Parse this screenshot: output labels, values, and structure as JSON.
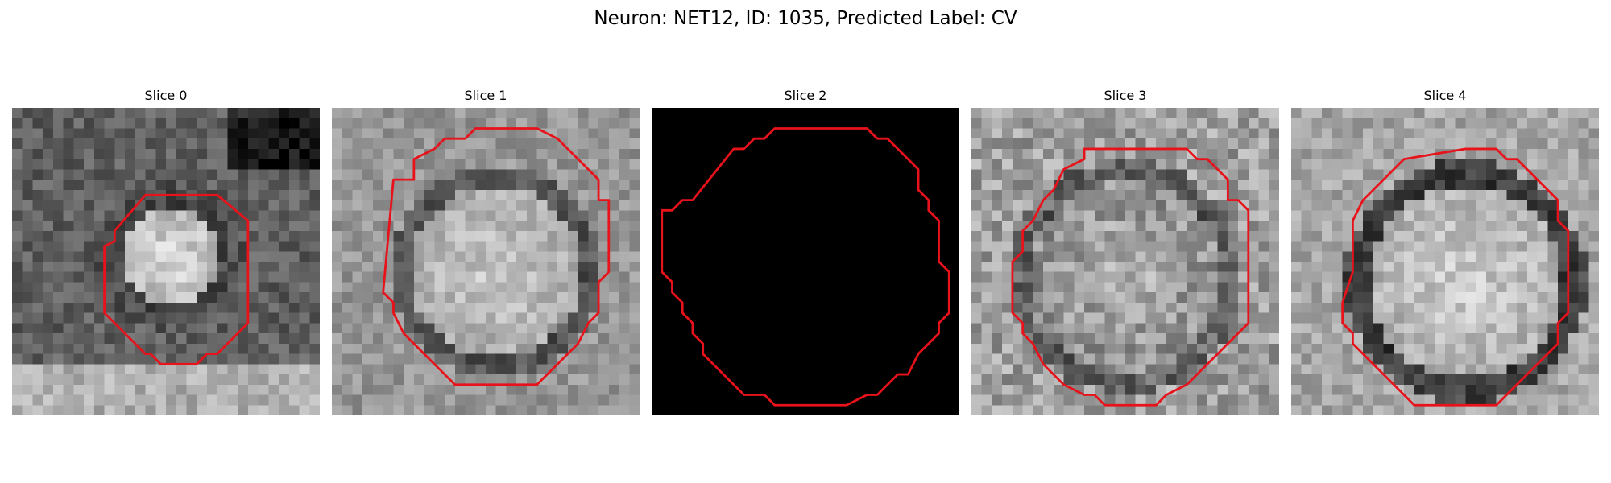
{
  "figure": {
    "title": "Neuron: NET12, ID: 1035, Predicted Label: CV",
    "contour_color": "#e8121b",
    "panels": [
      {
        "title": "Slice 0",
        "image": "grayscale EM slice, bright central soma with darker surround and dark top-right corner",
        "seed": 11,
        "contour": "small octagon"
      },
      {
        "title": "Slice 1",
        "image": "grayscale EM slice, large bright soma with darker ring",
        "seed": 23,
        "contour": "large octagon"
      },
      {
        "title": "Slice 2",
        "image": "completely black image",
        "seed": 0,
        "contour": "large octagon"
      },
      {
        "title": "Slice 3",
        "image": "grayscale EM slice, noisy bright soma with dark ring",
        "seed": 37,
        "contour": "octagon"
      },
      {
        "title": "Slice 4",
        "image": "grayscale EM slice, bright soma with dark membrane ring",
        "seed": 51,
        "contour": "octagon"
      }
    ]
  }
}
